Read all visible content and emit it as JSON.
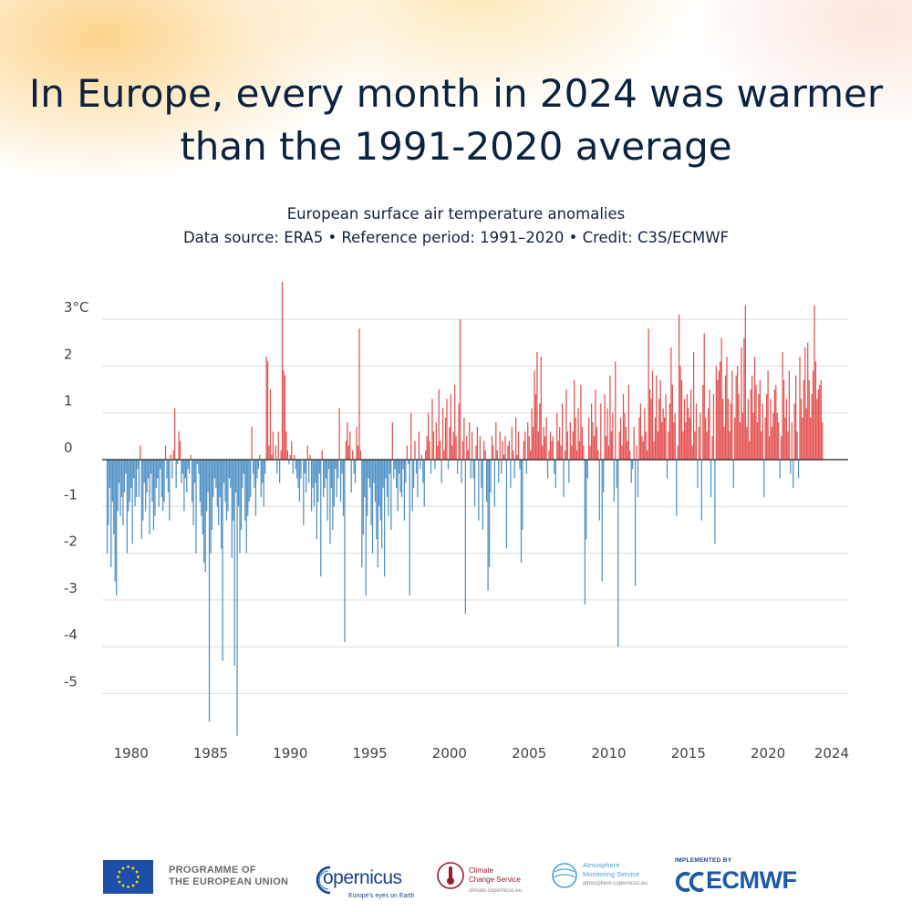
{
  "title_lines": [
    "In Europe, every month in 2024 was warmer",
    "than the 1991-2020 average"
  ],
  "subtitle_lines": [
    "European surface air temperature anomalies",
    "Data source: ERA5 • Reference period: 1991–2020 • Credit: C3S/ECMWF"
  ],
  "colors": {
    "positive": "#e5504f",
    "negative": "#4d90c5",
    "grid": "#dedede",
    "axis": "#222222",
    "text": "#0b2240",
    "tick_text": "#444444"
  },
  "chart_data": {
    "type": "bar",
    "title": "European surface air temperature anomalies",
    "ylabel": "°C",
    "ylim": [
      -5.9,
      3.9
    ],
    "yticks": [
      {
        "value": 3,
        "label": "3°C"
      },
      {
        "value": 2,
        "label": "2"
      },
      {
        "value": 1,
        "label": "1"
      },
      {
        "value": 0,
        "label": "0"
      },
      {
        "value": -1,
        "label": "-1"
      },
      {
        "value": -2,
        "label": "-2"
      },
      {
        "value": -3,
        "label": "-3"
      },
      {
        "value": -4,
        "label": "-4"
      },
      {
        "value": -5,
        "label": "-5"
      }
    ],
    "xticks": [
      {
        "year": 1980,
        "label": "1980"
      },
      {
        "year": 1985,
        "label": "1985"
      },
      {
        "year": 1990,
        "label": "1990"
      },
      {
        "year": 1995,
        "label": "1995"
      },
      {
        "year": 2000,
        "label": "2000"
      },
      {
        "year": 2005,
        "label": "2005"
      },
      {
        "year": 2010,
        "label": "2010"
      },
      {
        "year": 2015,
        "label": "2015"
      },
      {
        "year": 2020,
        "label": "2020"
      },
      {
        "year": 2024,
        "label": "2024"
      }
    ],
    "start": "1979-01",
    "end": "2024-12",
    "frequency": "monthly",
    "series": [
      {
        "name": "Monthly anomaly (°C)",
        "values": [
          -2.0,
          -1.4,
          -0.6,
          -2.3,
          -0.9,
          -1.6,
          -2.6,
          -2.9,
          -1.1,
          -0.5,
          -1.2,
          -0.8,
          -1.4,
          -0.7,
          -0.3,
          -2.0,
          -1.1,
          -0.9,
          -0.6,
          -1.8,
          -0.4,
          -1.0,
          -0.8,
          -0.2,
          -0.8,
          0.3,
          -1.7,
          -1.3,
          -0.5,
          -1.1,
          -0.7,
          -0.4,
          -1.6,
          -0.3,
          -0.9,
          -1.5,
          -1.2,
          -0.6,
          -0.4,
          -1.0,
          -0.2,
          -0.8,
          -1.1,
          -0.9,
          0.3,
          -0.4,
          -0.7,
          -1.3,
          0.1,
          -0.4,
          0.2,
          1.1,
          -0.6,
          -0.1,
          0.6,
          0.4,
          -0.5,
          -0.3,
          -1.1,
          -0.4,
          -0.7,
          -0.2,
          -0.3,
          0.1,
          -0.9,
          -1.4,
          -0.5,
          -2.0,
          -0.1,
          -0.3,
          -0.9,
          -1.2,
          -1.6,
          -2.2,
          -2.4,
          -1.1,
          -0.7,
          -5.6,
          -2.0,
          -1.5,
          -0.8,
          -0.4,
          -0.6,
          -1.0,
          -1.4,
          -0.8,
          -1.9,
          -4.3,
          -0.5,
          -0.9,
          -1.3,
          -1.1,
          -0.4,
          -0.6,
          -2.1,
          -1.3,
          -4.4,
          -0.7,
          -5.9,
          -1.0,
          -2.0,
          -1.5,
          -0.6,
          -0.3,
          -1.3,
          -2.0,
          -1.2,
          -0.9,
          -0.8,
          0.7,
          -0.3,
          -0.6,
          -1.2,
          -0.4,
          -0.2,
          0.1,
          -0.8,
          -0.5,
          -1.0,
          -0.3,
          2.2,
          2.1,
          0.3,
          1.5,
          0.1,
          0.6,
          0.0,
          0.3,
          -0.3,
          0.6,
          -0.5,
          0.2,
          3.8,
          1.9,
          1.8,
          0.6,
          0.2,
          -0.1,
          0.1,
          0.4,
          -0.3,
          0.1,
          -0.2,
          -0.4,
          -0.6,
          -0.9,
          -0.4,
          0.0,
          -1.4,
          -0.3,
          -0.7,
          0.3,
          -0.5,
          0.1,
          -1.1,
          -0.6,
          -1.0,
          -0.5,
          -1.7,
          -0.9,
          -0.3,
          -2.5,
          0.2,
          -0.8,
          -0.6,
          -0.4,
          -1.3,
          -0.2,
          -1.8,
          -0.6,
          -1.5,
          -1.0,
          -0.2,
          -0.8,
          -0.4,
          1.1,
          -0.9,
          -0.3,
          -1.2,
          -3.9,
          0.4,
          0.8,
          0.3,
          0.6,
          -0.7,
          0.2,
          -0.3,
          -0.5,
          0.7,
          0.3,
          2.8,
          0.2,
          -2.3,
          -1.6,
          -0.8,
          -2.9,
          -1.2,
          -0.4,
          -0.6,
          -1.4,
          -2.0,
          -0.5,
          -0.9,
          -1.7,
          -2.3,
          -1.0,
          -1.3,
          -1.9,
          -0.6,
          -2.5,
          -0.4,
          -0.8,
          -1.2,
          -0.3,
          -1.5,
          0.8,
          -0.4,
          -0.2,
          -0.6,
          -1.1,
          -0.3,
          -0.7,
          -0.8,
          -0.2,
          -1.3,
          -0.5,
          0.3,
          -0.1,
          -2.9,
          1.0,
          -1.1,
          -0.6,
          0.4,
          -0.3,
          -0.8,
          0.6,
          -0.2,
          0.1,
          -0.5,
          -1.0,
          0.2,
          0.5,
          1.0,
          0.4,
          -0.3,
          1.3,
          0.6,
          -0.2,
          0.8,
          0.3,
          1.5,
          0.4,
          -0.5,
          1.1,
          0.2,
          0.9,
          1.3,
          -0.2,
          0.7,
          1.4,
          0.3,
          0.6,
          1.6,
          0.5,
          -0.3,
          1.2,
          3.0,
          -0.5,
          0.4,
          0.9,
          -3.3,
          0.5,
          0.2,
          0.8,
          -0.4,
          0.6,
          -0.4,
          -1.0,
          0.3,
          0.7,
          -1.3,
          0.5,
          -0.6,
          -1.5,
          0.4,
          0.2,
          -0.9,
          -2.8,
          -2.3,
          -0.7,
          0.5,
          0.3,
          -1.0,
          0.8,
          0.2,
          -0.5,
          0.6,
          -0.3,
          0.4,
          0.1,
          0.5,
          -1.9,
          0.3,
          0.4,
          -0.6,
          0.7,
          0.2,
          -0.4,
          0.9,
          0.1,
          0.6,
          -0.2,
          -2.2,
          -1.5,
          0.4,
          0.6,
          -0.3,
          0.8,
          0.5,
          0.2,
          1.1,
          0.7,
          1.9,
          1.4,
          2.3,
          0.6,
          1.2,
          2.2,
          0.3,
          0.7,
          0.5,
          0.9,
          -0.4,
          0.2,
          0.6,
          0.4,
          0.5,
          -0.3,
          -0.6,
          1.0,
          0.4,
          0.7,
          0.3,
          1.2,
          -0.8,
          0.2,
          1.5,
          0.6,
          -0.5,
          0.8,
          0.3,
          0.6,
          1.7,
          0.9,
          0.2,
          1.1,
          0.4,
          1.6,
          0.7,
          0.3,
          -3.1,
          -1.7,
          -0.4,
          0.9,
          0.3,
          1.2,
          0.8,
          0.5,
          1.5,
          0.7,
          0.2,
          -1.3,
          1.2,
          -2.6,
          -0.7,
          1.4,
          0.5,
          1.1,
          0.3,
          1.8,
          0.6,
          1.0,
          -0.9,
          2.1,
          -0.6,
          -4.0,
          0.6,
          0.9,
          0.3,
          1.4,
          1.0,
          0.7,
          0.4,
          1.6,
          0.2,
          -0.5,
          -0.2,
          0.7,
          -2.7,
          0.3,
          -0.8,
          0.9,
          1.2,
          0.5,
          0.4,
          1.1,
          0.6,
          0.2,
          2.8,
          1.5,
          1.3,
          1.9,
          0.4,
          0.9,
          1.8,
          0.6,
          1.3,
          1.7,
          0.8,
          1.1,
          0.9,
          1.4,
          -0.4,
          0.6,
          1.2,
          2.4,
          1.6,
          0.8,
          1.0,
          -1.2,
          0.3,
          3.1,
          2.0,
          1.7,
          0.6,
          1.3,
          0.8,
          1.4,
          1.1,
          0.9,
          1.5,
          0.3,
          2.3,
          0.6,
          1.2,
          -0.6,
          0.7,
          1.0,
          -1.3,
          1.6,
          2.7,
          0.9,
          0.6,
          1.1,
          1.5,
          -0.8,
          0.5,
          1.4,
          -1.8,
          2.0,
          1.7,
          1.9,
          2.1,
          2.6,
          1.3,
          0.7,
          1.8,
          2.2,
          1.3,
          0.6,
          1.2,
          1.9,
          -0.6,
          0.9,
          1.8,
          2.0,
          1.4,
          0.8,
          2.4,
          1.0,
          2.6,
          3.3,
          0.7,
          1.3,
          0.4,
          1.5,
          1.8,
          1.0,
          2.2,
          1.6,
          0.8,
          1.4,
          1.7,
          0.6,
          1.2,
          -0.8,
          0.9,
          1.4,
          1.9,
          0.5,
          1.3,
          0.7,
          1.0,
          1.5,
          1.6,
          1.0,
          0.8,
          -0.4,
          0.5,
          2.3,
          1.7,
          0.9,
          1.3,
          0.6,
          1.9,
          -0.3,
          0.8,
          -0.6,
          1.2,
          1.8,
          0.6,
          -0.4,
          2.2,
          1.3,
          0.9,
          1.7,
          2.4,
          1.1,
          2.5,
          1.7,
          0.9,
          1.4,
          1.9,
          3.3,
          2.1,
          1.3,
          1.5,
          1.6,
          1.7,
          0.8
        ]
      }
    ]
  },
  "footer": {
    "eu_text_lines": [
      "PROGRAMME OF",
      "THE EUROPEAN UNION"
    ],
    "copernicus_main": "opernicus",
    "copernicus_tagline": "Europe's eyes on Earth",
    "c3s_lines": [
      "Climate",
      "Change Service"
    ],
    "c3s_url": "climate.copernicus.eu",
    "cams_lines": [
      "Atmosphere",
      "Monitoring Service"
    ],
    "cams_url": "atmosphere.copernicus.eu",
    "ecmwf_implemented": "IMPLEMENTED BY",
    "ecmwf_name": "ECMWF"
  }
}
